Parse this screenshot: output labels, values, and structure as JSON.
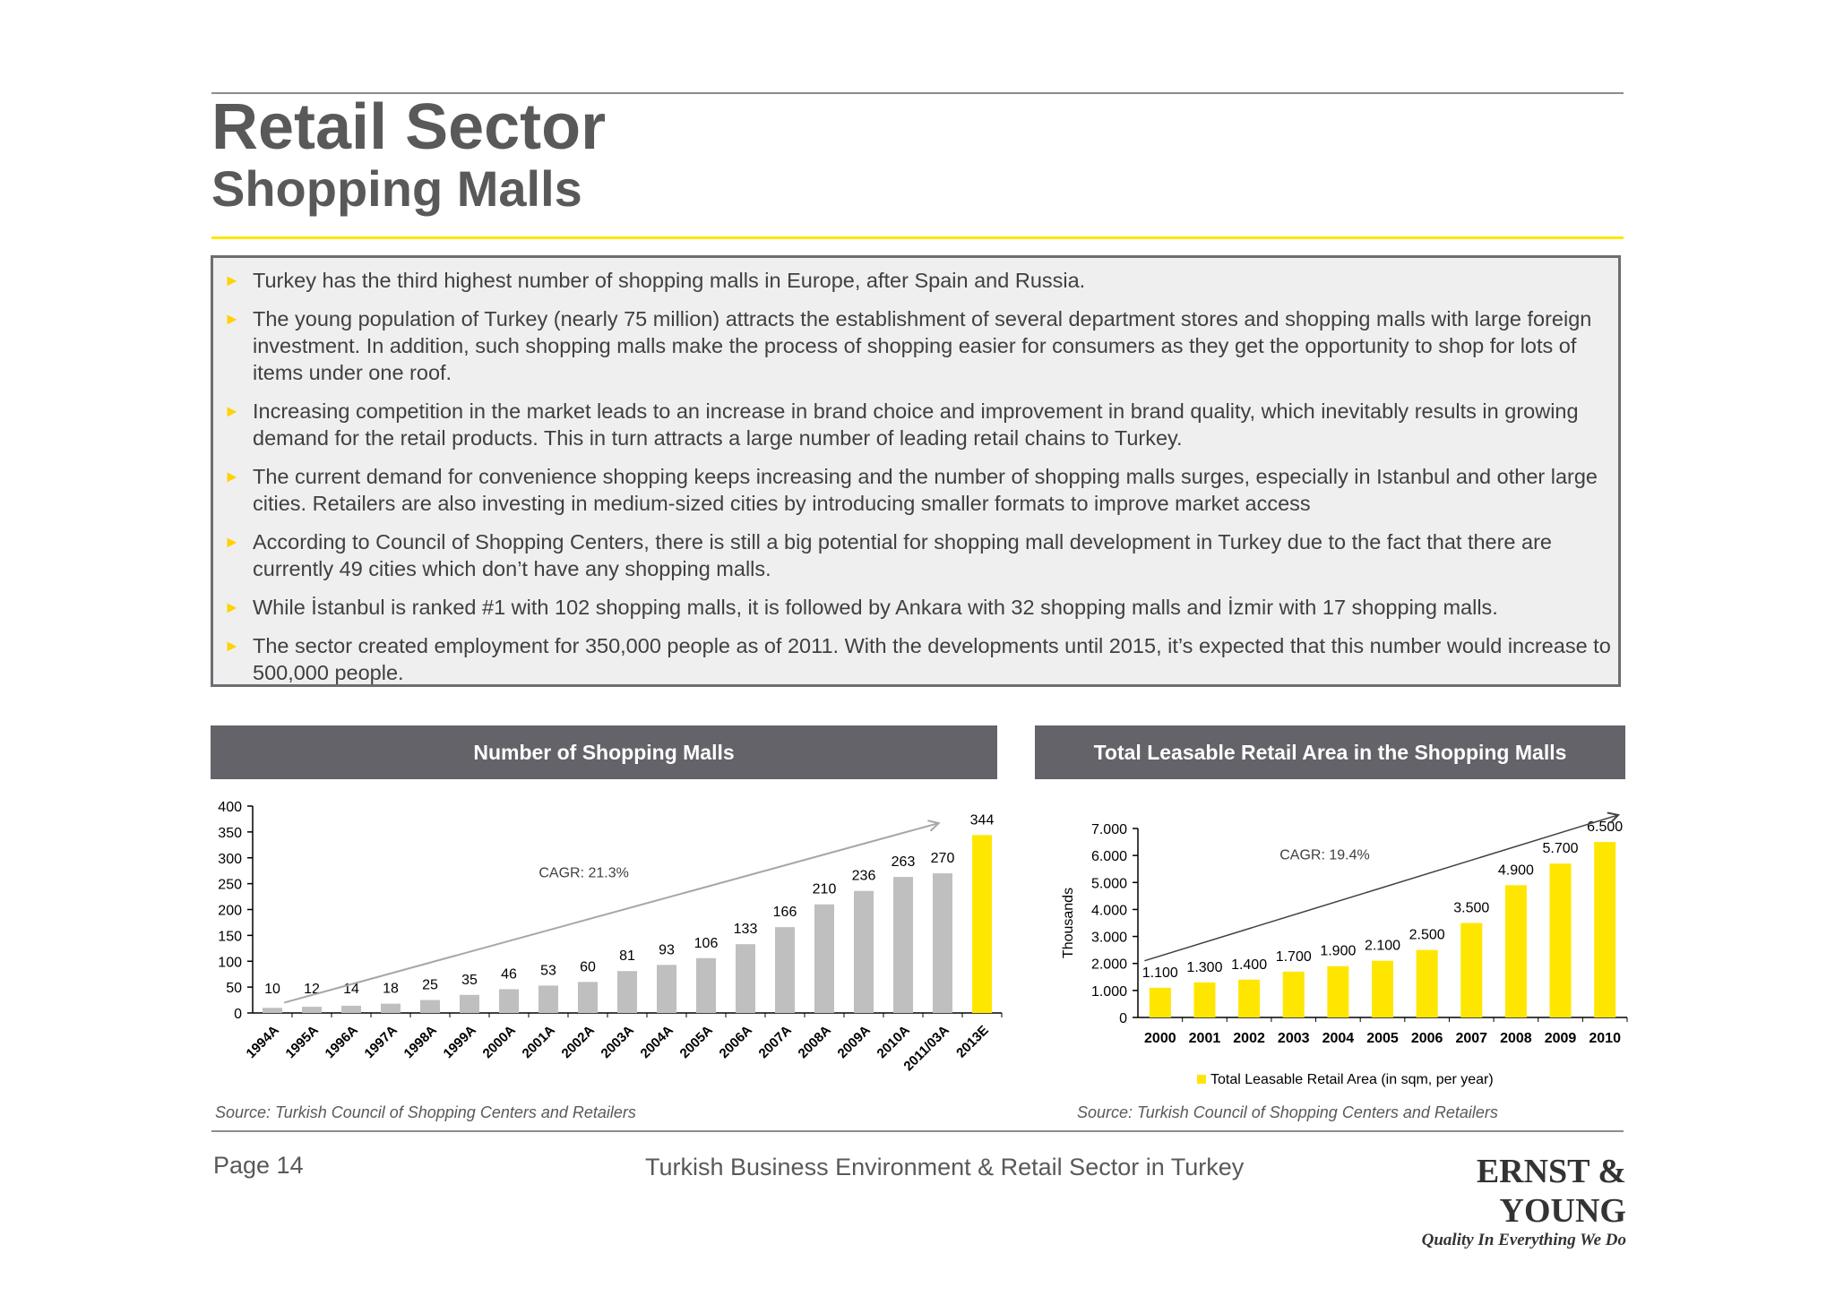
{
  "header": {
    "title": "Retail Sector",
    "subtitle": "Shopping Malls"
  },
  "bullets": [
    "Turkey has the third highest number of shopping malls in Europe, after Spain and Russia.",
    "The young population of Turkey (nearly 75 million) attracts the establishment of several department stores and shopping malls with large foreign investment. In addition, such shopping malls make the process of shopping easier for consumers as they get the opportunity to shop for lots of items under one roof.",
    "Increasing competition in the market leads to an increase in brand choice and improvement in brand quality, which inevitably results in growing demand for the retail products. This in turn attracts a large number of leading retail chains to Turkey.",
    "The current demand for convenience shopping keeps increasing and the number of shopping malls surges, especially in Istanbul and other large cities. Retailers are also investing in medium-sized cities by introducing smaller formats to improve market access",
    "According to Council of Shopping Centers, there is still a big potential for shopping mall development in Turkey due to the fact that there are currently 49 cities which don’t have any shopping malls.",
    "While İstanbul is ranked #1 with 102 shopping malls, it is followed by Ankara with 32 shopping malls and İzmir with 17 shopping malls.",
    "The sector created employment for 350,000 people as of 2011. With the developments until 2015, it’s expected that this number would increase to 500,000 people."
  ],
  "chart_data": [
    {
      "type": "bar",
      "title": "Number of Shopping Malls",
      "categories": [
        "1994A",
        "1995A",
        "1996A",
        "1997A",
        "1998A",
        "1999A",
        "2000A",
        "2001A",
        "2002A",
        "2003A",
        "2004A",
        "2005A",
        "2006A",
        "2007A",
        "2008A",
        "2009A",
        "2010A",
        "2011/03A",
        "2013E"
      ],
      "values": [
        10,
        12,
        14,
        18,
        25,
        35,
        46,
        53,
        60,
        81,
        93,
        106,
        133,
        166,
        210,
        236,
        263,
        270,
        344
      ],
      "highlight_index": 18,
      "ylim": [
        0,
        400
      ],
      "yticks": [
        "0",
        "50",
        "100",
        "150",
        "200",
        "250",
        "300",
        "350",
        "400"
      ],
      "xlabel": "",
      "ylabel": "",
      "annotation": "CAGR: 21.3%",
      "bar_color": "#bfbfbf",
      "highlight_color": "#ffe600",
      "source": "Source: Turkish Council of Shopping Centers and Retailers"
    },
    {
      "type": "bar",
      "title": "Total Leasable Retail Area in the Shopping Malls",
      "categories": [
        "2000",
        "2001",
        "2002",
        "2003",
        "2004",
        "2005",
        "2006",
        "2007",
        "2008",
        "2009",
        "2010"
      ],
      "values": [
        1100,
        1300,
        1400,
        1700,
        1900,
        2100,
        2500,
        3500,
        4900,
        5700,
        6500
      ],
      "value_labels": [
        "1.100",
        "1.300",
        "1.400",
        "1.700",
        "1.900",
        "2.100",
        "2.500",
        "3.500",
        "4.900",
        "5.700",
        "6.500"
      ],
      "ylim": [
        0,
        7000
      ],
      "yticks": [
        "0",
        "1.000",
        "2.000",
        "3.000",
        "4.000",
        "5.000",
        "6.000",
        "7.000"
      ],
      "ylabel": "Thousands",
      "annotation": "CAGR: 19.4%",
      "legend": "Total Leasable Retail Area (in sqm, per year)",
      "bar_color": "#ffe600",
      "source": "Source: Turkish Council of Shopping Centers and Retailers"
    }
  ],
  "footer": {
    "page": "Page 14",
    "doc_title": "Turkish Business Environment & Retail Sector in Turkey",
    "logo_name": "ERNST & YOUNG",
    "logo_tagline": "Quality In Everything We Do"
  },
  "colors": {
    "accent": "#ffe600",
    "header_bar": "#646369",
    "text": "#595959"
  }
}
